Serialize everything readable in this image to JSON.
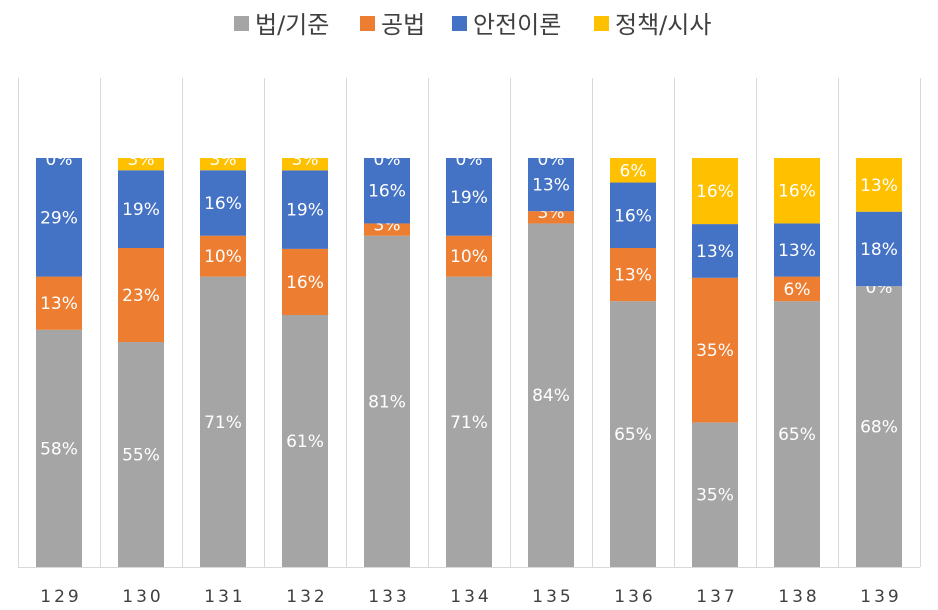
{
  "chart_data": {
    "type": "bar",
    "stacked": true,
    "normalized": true,
    "legend_position": "top",
    "grid": false,
    "categories": [
      "129",
      "130",
      "131",
      "132",
      "133",
      "134",
      "135",
      "136",
      "137",
      "138",
      "139"
    ],
    "series": [
      {
        "name": "법/기준",
        "color": "#A5A5A5",
        "label_color": "#FFFFFF",
        "values": [
          58,
          55,
          71,
          61,
          81,
          71,
          84,
          65,
          35,
          65,
          68
        ],
        "labels": [
          "58%",
          "55%",
          "71%",
          "61%",
          "81%",
          "71%",
          "84%",
          "65%",
          "35%",
          "65%",
          "68%"
        ]
      },
      {
        "name": "공법",
        "color": "#ED7D31",
        "label_color": "#FFFFFF",
        "values": [
          13,
          23,
          10,
          16,
          3,
          10,
          3,
          13,
          35,
          6,
          0
        ],
        "labels": [
          "13%",
          "23%",
          "10%",
          "16%",
          "3%",
          "10%",
          "3%",
          "13%",
          "35%",
          "6%",
          "0%"
        ]
      },
      {
        "name": "안전이론",
        "color": "#4472C4",
        "label_color": "#FFFFFF",
        "values": [
          29,
          19,
          16,
          19,
          16,
          19,
          13,
          16,
          13,
          13,
          18
        ],
        "labels": [
          "29%",
          "19%",
          "16%",
          "19%",
          "16%",
          "19%",
          "13%",
          "16%",
          "13%",
          "13%",
          "18%"
        ]
      },
      {
        "name": "정책/시사",
        "color": "#FFC000",
        "label_color": "#FFFFFF",
        "values": [
          0,
          3,
          3,
          3,
          0,
          0,
          0,
          6,
          16,
          16,
          13
        ],
        "labels": [
          "0%",
          "3%",
          "3%",
          "3%",
          "0%",
          "0%",
          "0%",
          "6%",
          "16%",
          "16%",
          "13%"
        ]
      }
    ]
  }
}
